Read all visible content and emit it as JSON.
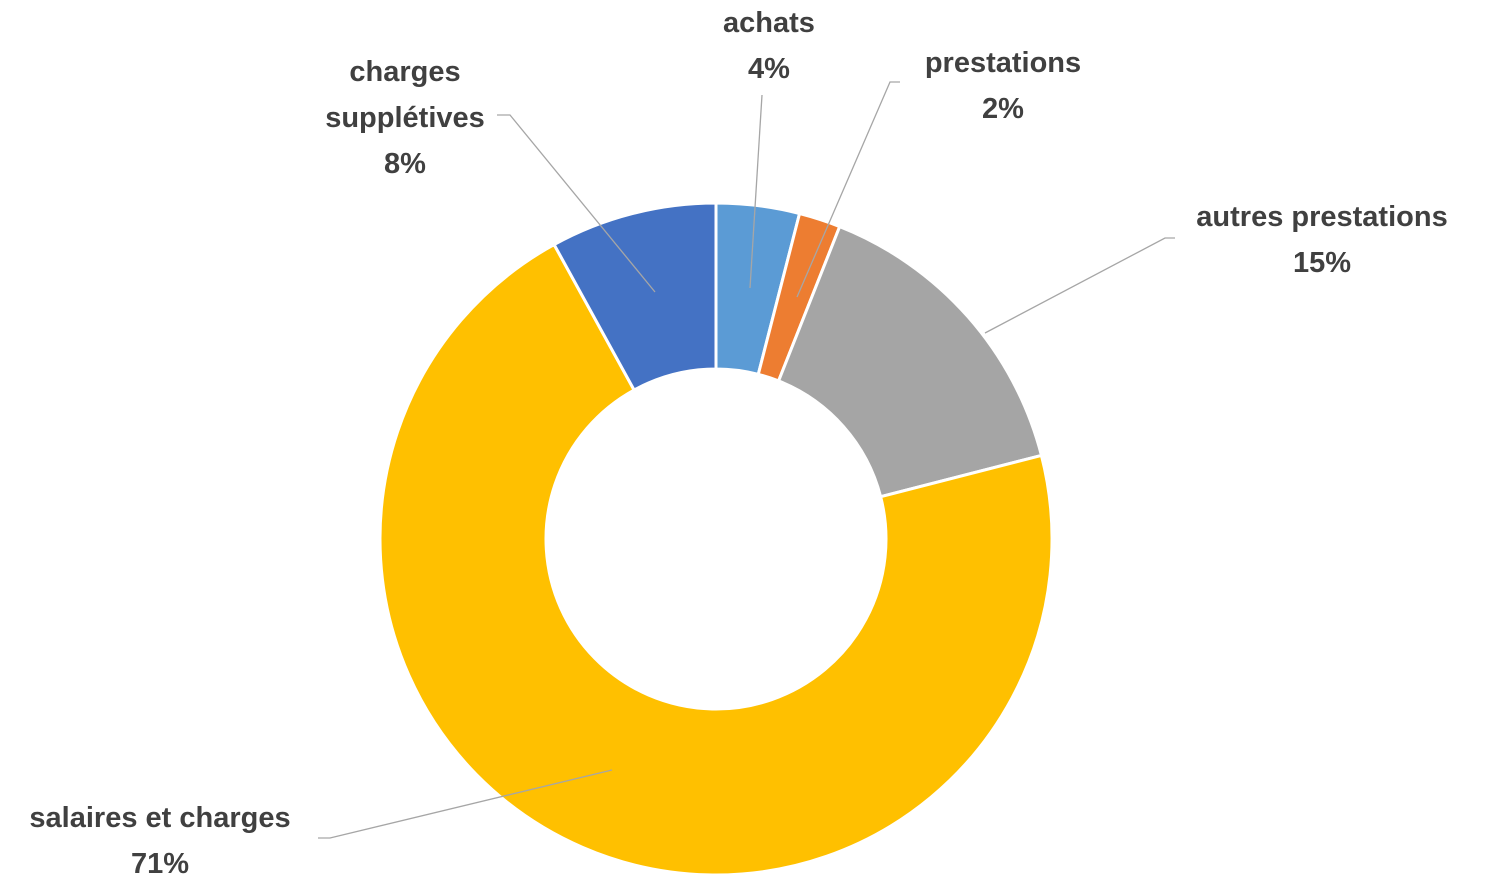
{
  "chart_data": {
    "type": "donut",
    "categories": [
      "achats",
      "prestations",
      "autres prestations",
      "salaires et charges",
      "charges supplétives"
    ],
    "values": [
      4,
      2,
      15,
      71,
      8
    ],
    "value_labels": [
      "4%",
      "2%",
      "15%",
      "71%",
      "8%"
    ],
    "colors": [
      "#5b9bd5",
      "#ed7d31",
      "#a5a5a5",
      "#ffc000",
      "#4472c4"
    ]
  }
}
